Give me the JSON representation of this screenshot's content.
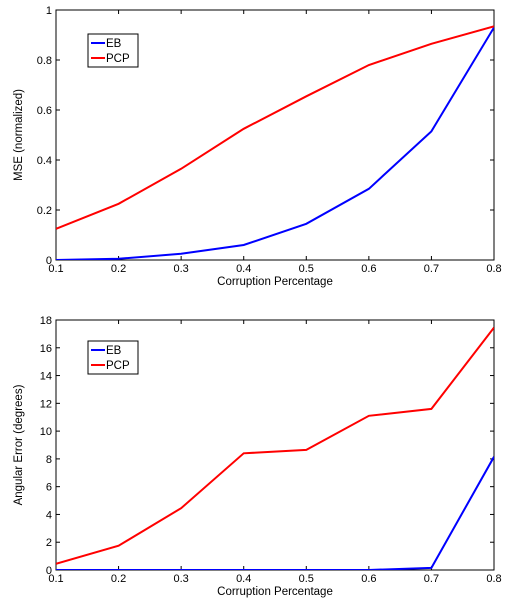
{
  "chart_data": [
    {
      "type": "line",
      "xlabel": "Corruption Percentage",
      "ylabel": "MSE (normalized)",
      "xlim": [
        0.1,
        0.8
      ],
      "ylim": [
        0,
        1
      ],
      "xticks": [
        0.1,
        0.2,
        0.3,
        0.4,
        0.5,
        0.6,
        0.7,
        0.8
      ],
      "yticks": [
        0,
        0.2,
        0.4,
        0.6,
        0.8,
        1
      ],
      "grid": false,
      "legend_placement": "top-left",
      "x": [
        0.1,
        0.2,
        0.3,
        0.4,
        0.5,
        0.6,
        0.7,
        0.8
      ],
      "series": [
        {
          "name": "EB",
          "color": "#0000ff",
          "values": [
            0.0,
            0.005,
            0.025,
            0.06,
            0.145,
            0.285,
            0.515,
            0.93
          ]
        },
        {
          "name": "PCP",
          "color": "#ff0000",
          "values": [
            0.125,
            0.225,
            0.365,
            0.525,
            0.655,
            0.78,
            0.865,
            0.935
          ]
        }
      ]
    },
    {
      "type": "line",
      "xlabel": "Corruption Percentage",
      "ylabel": "Angular Error (degrees)",
      "xlim": [
        0.1,
        0.8
      ],
      "ylim": [
        0,
        18
      ],
      "xticks": [
        0.1,
        0.2,
        0.3,
        0.4,
        0.5,
        0.6,
        0.7,
        0.8
      ],
      "yticks": [
        0,
        2,
        4,
        6,
        8,
        10,
        12,
        14,
        16,
        18
      ],
      "grid": false,
      "legend_placement": "top-left",
      "x": [
        0.1,
        0.2,
        0.3,
        0.4,
        0.5,
        0.6,
        0.7,
        0.8
      ],
      "series": [
        {
          "name": "EB",
          "color": "#0000ff",
          "values": [
            0.0,
            0.0,
            0.0,
            0.0,
            0.0,
            0.0,
            0.15,
            8.15
          ]
        },
        {
          "name": "PCP",
          "color": "#ff0000",
          "values": [
            0.45,
            1.75,
            4.45,
            8.4,
            8.65,
            11.1,
            11.6,
            17.45
          ]
        }
      ]
    }
  ]
}
